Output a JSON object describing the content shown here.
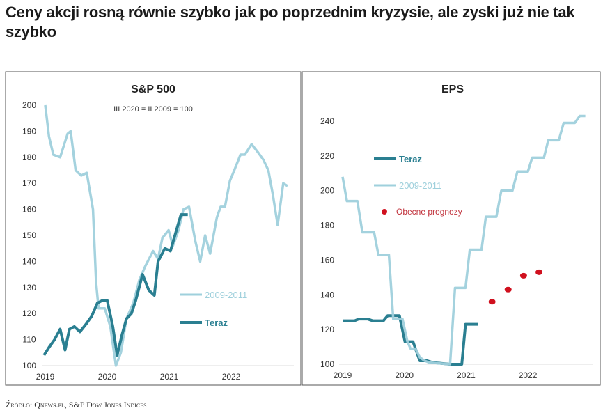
{
  "title": "Ceny akcji rosną równie szybko jak po poprzednim kryzysie, ale zyski już nie tak szybko",
  "source": "Źródło: Qnews.pl, S&P Dow Jones Indices",
  "colors": {
    "teraz": "#2a7f91",
    "hist": "#9fd0dc",
    "forecast": "#d0101e"
  },
  "chart_data": [
    {
      "type": "line",
      "title": "S&P 500",
      "subtitle": "III 2020 = II 2009 = 100",
      "xlabel": "",
      "ylabel": "",
      "xticks": [
        2019,
        2020,
        2021,
        2022
      ],
      "yticks": [
        100,
        110,
        120,
        130,
        140,
        150,
        160,
        170,
        180,
        190,
        200
      ],
      "ylim": [
        100,
        200
      ],
      "xlim": [
        2019,
        2022.95
      ],
      "legend": "center-right",
      "series": [
        {
          "name": "2009-2011",
          "x": [
            2019.0,
            2019.06,
            2019.13,
            2019.24,
            2019.36,
            2019.41,
            2019.49,
            2019.58,
            2019.67,
            2019.77,
            2019.82,
            2019.86,
            2019.96,
            2020.05,
            2020.14,
            2020.22,
            2020.31,
            2020.42,
            2020.52,
            2020.61,
            2020.74,
            2020.82,
            2020.89,
            2020.99,
            2021.06,
            2021.15,
            2021.23,
            2021.32,
            2021.42,
            2021.5,
            2021.58,
            2021.66,
            2021.77,
            2021.83,
            2021.9,
            2021.98,
            2022.05,
            2022.15,
            2022.22,
            2022.33,
            2022.43,
            2022.52,
            2022.6,
            2022.67,
            2022.75,
            2022.84,
            2022.91
          ],
          "y": [
            200,
            188,
            181,
            180,
            189,
            190,
            175,
            173,
            174,
            160,
            132,
            122,
            122,
            115,
            100,
            105,
            118,
            124,
            133,
            138,
            144,
            141,
            149,
            152,
            146,
            152,
            160,
            161,
            148,
            140,
            150,
            143,
            157,
            161,
            161,
            171,
            175,
            181,
            181,
            185,
            182,
            179,
            175,
            166,
            154,
            170,
            169
          ]
        },
        {
          "name": "Teraz",
          "x": [
            2018.98,
            2019.06,
            2019.15,
            2019.24,
            2019.32,
            2019.39,
            2019.47,
            2019.56,
            2019.66,
            2019.75,
            2019.84,
            2019.92,
            2020.0,
            2020.09,
            2020.16,
            2020.24,
            2020.31,
            2020.39,
            2020.46,
            2020.57,
            2020.67,
            2020.76,
            2020.82,
            2020.93,
            2021.02,
            2021.08,
            2021.19,
            2021.3
          ],
          "y": [
            104,
            107,
            110,
            114,
            106,
            114,
            115,
            113,
            116,
            119,
            124,
            125,
            125,
            115,
            104,
            112,
            118,
            120,
            125,
            135,
            129,
            127,
            140,
            145,
            144,
            149,
            158,
            158
          ]
        }
      ]
    },
    {
      "type": "line",
      "title": "EPS",
      "xlabel": "",
      "ylabel": "",
      "xticks": [
        2019,
        2020,
        2021,
        2022
      ],
      "yticks": [
        100,
        120,
        140,
        160,
        180,
        200,
        220,
        240
      ],
      "ylim": [
        100,
        240
      ],
      "xlim": [
        2019,
        2022.95
      ],
      "legend": "top-left",
      "series": [
        {
          "name": "Teraz",
          "x": [
            2019.0,
            2019.19,
            2019.26,
            2019.41,
            2019.49,
            2019.66,
            2019.73,
            2019.92,
            2020.01,
            2020.09,
            2020.14,
            2020.2,
            2020.25,
            2020.37,
            2020.46,
            2020.74,
            2020.93,
            2020.99,
            2021.19
          ],
          "y": [
            125,
            125,
            126,
            126,
            125,
            125,
            128,
            128,
            113,
            113,
            113,
            107,
            102,
            102,
            101,
            100,
            100,
            123,
            123
          ]
        },
        {
          "name": "2009-2011",
          "x": [
            2019.0,
            2019.07,
            2019.24,
            2019.32,
            2019.51,
            2019.58,
            2019.75,
            2019.82,
            2019.97,
            2020.05,
            2020.1,
            2020.18,
            2020.25,
            2020.33,
            2020.4,
            2020.74,
            2020.82,
            2020.99,
            2021.06,
            2021.25,
            2021.32,
            2021.49,
            2021.57,
            2021.75,
            2021.83,
            2022.0,
            2022.07,
            2022.26,
            2022.33,
            2022.5,
            2022.58,
            2022.76,
            2022.84,
            2022.93
          ],
          "y": [
            208,
            194,
            194,
            176,
            176,
            163,
            163,
            126,
            126,
            113,
            109,
            109,
            104,
            102,
            101,
            100,
            144,
            144,
            166,
            166,
            185,
            185,
            200,
            200,
            211,
            211,
            219,
            219,
            229,
            229,
            239,
            239,
            243,
            243
          ]
        },
        {
          "name": "Obecne prognozy",
          "type": "scatter",
          "x": [
            2021.42,
            2021.68,
            2021.93,
            2022.18
          ],
          "y": [
            136,
            143,
            151,
            153
          ]
        }
      ]
    }
  ]
}
